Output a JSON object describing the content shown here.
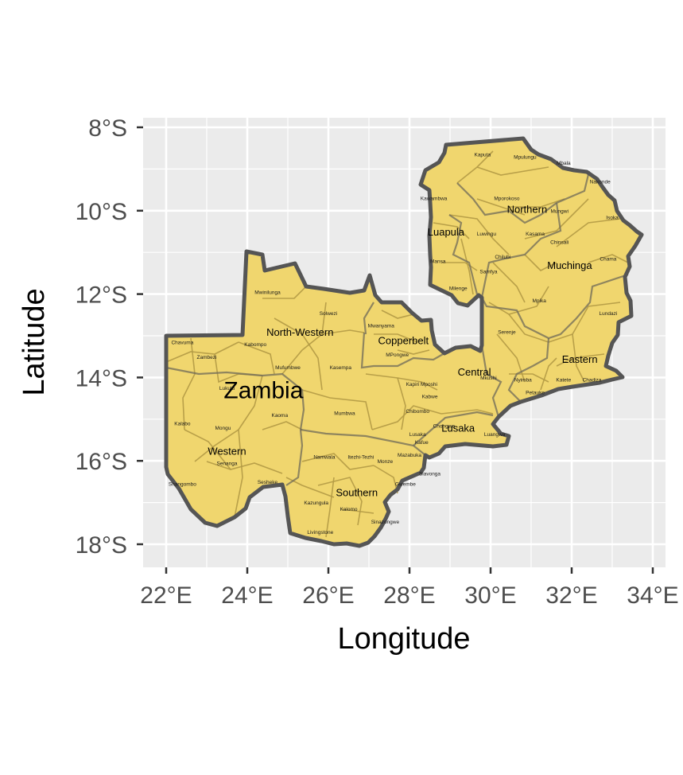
{
  "axes": {
    "x_label": "Longitude",
    "y_label": "Latitude",
    "x_ticks": [
      {
        "value": 22,
        "label": "22°E"
      },
      {
        "value": 24,
        "label": "24°E"
      },
      {
        "value": 26,
        "label": "26°E"
      },
      {
        "value": 28,
        "label": "28°E"
      },
      {
        "value": 30,
        "label": "30°E"
      },
      {
        "value": 32,
        "label": "32°E"
      },
      {
        "value": 34,
        "label": "34°E"
      }
    ],
    "y_ticks": [
      {
        "value": -8,
        "label": "8°S"
      },
      {
        "value": -10,
        "label": "10°S"
      },
      {
        "value": -12,
        "label": "12°S"
      },
      {
        "value": -14,
        "label": "14°S"
      },
      {
        "value": -16,
        "label": "16°S"
      },
      {
        "value": -18,
        "label": "18°S"
      }
    ],
    "xlim": [
      21.6,
      34.3
    ],
    "ylim": [
      -18.6,
      -7.8
    ]
  },
  "colors": {
    "panel_bg": "#ebebeb",
    "grid": "#ffffff",
    "fill": "#f0d66e",
    "province_border": "#555555",
    "district_border": "#b39a45"
  },
  "country": {
    "name": "Zambia",
    "lon": 24.4,
    "lat": -14.5
  },
  "provinces": [
    {
      "name": "Northern",
      "lon": 30.9,
      "lat": -10.05
    },
    {
      "name": "Luapula",
      "lon": 28.9,
      "lat": -10.6
    },
    {
      "name": "Muchinga",
      "lon": 31.95,
      "lat": -11.4
    },
    {
      "name": "North-Western",
      "lon": 25.3,
      "lat": -13.0
    },
    {
      "name": "Copperbelt",
      "lon": 27.85,
      "lat": -13.2
    },
    {
      "name": "Central",
      "lon": 29.6,
      "lat": -13.95
    },
    {
      "name": "Eastern",
      "lon": 32.2,
      "lat": -13.65
    },
    {
      "name": "Zambia",
      "lon": 24.4,
      "lat": -14.5
    },
    {
      "name": "Lusaka",
      "lon": 29.2,
      "lat": -15.3
    },
    {
      "name": "Western",
      "lon": 23.5,
      "lat": -15.85
    },
    {
      "name": "Southern",
      "lon": 26.7,
      "lat": -16.85
    }
  ],
  "districts": [
    {
      "name": "Kaputa",
      "lon": 29.8,
      "lat": -8.7
    },
    {
      "name": "Mpulungu",
      "lon": 30.85,
      "lat": -8.75
    },
    {
      "name": "Mbala",
      "lon": 31.8,
      "lat": -8.9
    },
    {
      "name": "Nakonde",
      "lon": 32.7,
      "lat": -9.35
    },
    {
      "name": "Kawambwa",
      "lon": 28.6,
      "lat": -9.75
    },
    {
      "name": "Mporokoso",
      "lon": 30.4,
      "lat": -9.75
    },
    {
      "name": "Mungwi",
      "lon": 31.7,
      "lat": -10.05
    },
    {
      "name": "Isoka",
      "lon": 33.0,
      "lat": -10.2
    },
    {
      "name": "Kasama",
      "lon": 31.1,
      "lat": -10.6
    },
    {
      "name": "Luwingu",
      "lon": 29.9,
      "lat": -10.6
    },
    {
      "name": "Chinsali",
      "lon": 31.7,
      "lat": -10.8
    },
    {
      "name": "Chilubi",
      "lon": 30.3,
      "lat": -11.15
    },
    {
      "name": "Chama",
      "lon": 32.9,
      "lat": -11.2
    },
    {
      "name": "Mansa",
      "lon": 28.7,
      "lat": -11.25
    },
    {
      "name": "Samfya",
      "lon": 29.95,
      "lat": -11.5
    },
    {
      "name": "Milenge",
      "lon": 29.2,
      "lat": -11.9
    },
    {
      "name": "Mpika",
      "lon": 31.2,
      "lat": -12.2
    },
    {
      "name": "Lundazi",
      "lon": 32.9,
      "lat": -12.5
    },
    {
      "name": "Mwinilunga",
      "lon": 24.5,
      "lat": -12.0
    },
    {
      "name": "Solwezi",
      "lon": 26.0,
      "lat": -12.5
    },
    {
      "name": "Mwanyama",
      "lon": 27.3,
      "lat": -12.8
    },
    {
      "name": "Serenje",
      "lon": 30.4,
      "lat": -12.95
    },
    {
      "name": "Chavuma",
      "lon": 22.4,
      "lat": -13.2
    },
    {
      "name": "Kabompo",
      "lon": 24.2,
      "lat": -13.25
    },
    {
      "name": "Zambezi",
      "lon": 23.0,
      "lat": -13.55
    },
    {
      "name": "MPongwe",
      "lon": 27.7,
      "lat": -13.5
    },
    {
      "name": "Mufumbwe",
      "lon": 25.0,
      "lat": -13.8
    },
    {
      "name": "Kasempa",
      "lon": 26.3,
      "lat": -13.8
    },
    {
      "name": "Mkushi",
      "lon": 29.95,
      "lat": -14.05
    },
    {
      "name": "Nyimba",
      "lon": 30.8,
      "lat": -14.1
    },
    {
      "name": "Katete",
      "lon": 31.8,
      "lat": -14.1
    },
    {
      "name": "Chadiza",
      "lon": 32.5,
      "lat": -14.1
    },
    {
      "name": "Kapiri Mposhi",
      "lon": 28.3,
      "lat": -14.2
    },
    {
      "name": "Lukulu",
      "lon": 23.5,
      "lat": -14.3
    },
    {
      "name": "Kabwe",
      "lon": 28.5,
      "lat": -14.5
    },
    {
      "name": "Petauke",
      "lon": 31.1,
      "lat": -14.4
    },
    {
      "name": "Kaoma",
      "lon": 24.8,
      "lat": -14.95
    },
    {
      "name": "Mumbwa",
      "lon": 26.4,
      "lat": -14.9
    },
    {
      "name": "Chibombo",
      "lon": 28.2,
      "lat": -14.85
    },
    {
      "name": "Kalabo",
      "lon": 22.4,
      "lat": -15.15
    },
    {
      "name": "Mongu",
      "lon": 23.4,
      "lat": -15.25
    },
    {
      "name": "Chongwe",
      "lon": 28.85,
      "lat": -15.2
    },
    {
      "name": "Lusaka",
      "lon": 28.2,
      "lat": -15.4
    },
    {
      "name": "Luangwa",
      "lon": 30.1,
      "lat": -15.4
    },
    {
      "name": "Kafue",
      "lon": 28.3,
      "lat": -15.6
    },
    {
      "name": "Senanga",
      "lon": 23.5,
      "lat": -16.1
    },
    {
      "name": "Namwala",
      "lon": 25.9,
      "lat": -15.95
    },
    {
      "name": "Itezhi-Tezhi",
      "lon": 26.8,
      "lat": -15.95
    },
    {
      "name": "Mazabuka",
      "lon": 28.0,
      "lat": -15.9
    },
    {
      "name": "Monze",
      "lon": 27.4,
      "lat": -16.05
    },
    {
      "name": "Siavonga",
      "lon": 28.5,
      "lat": -16.35
    },
    {
      "name": "Shangombo",
      "lon": 22.4,
      "lat": -16.6
    },
    {
      "name": "Sesheke",
      "lon": 24.5,
      "lat": -16.55
    },
    {
      "name": "Gwembe",
      "lon": 27.9,
      "lat": -16.6
    },
    {
      "name": "Kazungula",
      "lon": 25.7,
      "lat": -17.05
    },
    {
      "name": "Kalomo",
      "lon": 26.5,
      "lat": -17.2
    },
    {
      "name": "Sinazongwe",
      "lon": 27.4,
      "lat": -17.5
    },
    {
      "name": "Livingstone",
      "lon": 25.8,
      "lat": -17.75
    }
  ]
}
